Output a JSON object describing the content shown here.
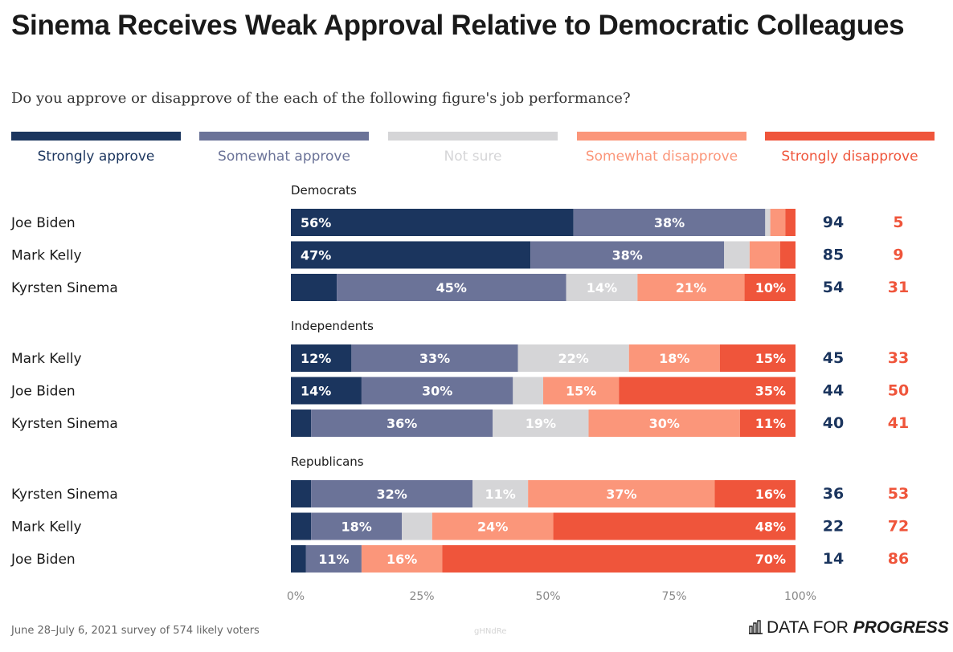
{
  "title": "Sinema Receives Weak Approval Relative to Democratic Colleagues",
  "subtitle": "Do you approve or disapprove of the each of the following figure's job performance?",
  "footer": "June 28–July 6, 2021 survey of 574 likely voters",
  "watermark": "gHNdRe",
  "brand": {
    "part1": "DATA FOR",
    "part2": "PROGRESS",
    "icon": "bar-chart-icon"
  },
  "legend": [
    {
      "label": "Strongly approve",
      "color": "#1b355e"
    },
    {
      "label": "Somewhat approve",
      "color": "#6b7398"
    },
    {
      "label": "Not sure",
      "color": "#d5d5d7"
    },
    {
      "label": "Somewhat disapprove",
      "color": "#fb967a"
    },
    {
      "label": "Strongly disapprove",
      "color": "#ef553b"
    }
  ],
  "chart_data": {
    "type": "bar",
    "orientation": "horizontal",
    "stacked": true,
    "xlim": [
      0,
      100
    ],
    "ticks": [
      "0%",
      "25%",
      "50%",
      "75%",
      "100%"
    ],
    "series": [
      "Strongly approve",
      "Somewhat approve",
      "Not sure",
      "Somewhat disapprove",
      "Strongly disapprove"
    ],
    "colors": [
      "#1b355e",
      "#6b7398",
      "#d5d5d7",
      "#fb967a",
      "#ef553b"
    ],
    "groups": [
      {
        "name": "Democrats",
        "rows": [
          {
            "label": "Joe Biden",
            "values": [
              56,
              38,
              1,
              3,
              2
            ],
            "shown": [
              "56%",
              "38%",
              "",
              "",
              ""
            ],
            "approve_total": "94",
            "disapprove_total": "5"
          },
          {
            "label": "Mark Kelly",
            "values": [
              47,
              38,
              5,
              6,
              3
            ],
            "shown": [
              "47%",
              "38%",
              "",
              "",
              ""
            ],
            "approve_total": "85",
            "disapprove_total": "9"
          },
          {
            "label": "Kyrsten Sinema",
            "values": [
              9,
              45,
              14,
              21,
              10
            ],
            "shown": [
              "",
              "45%",
              "14%",
              "21%",
              "10%"
            ],
            "approve_total": "54",
            "disapprove_total": "31"
          }
        ]
      },
      {
        "name": "Independents",
        "rows": [
          {
            "label": "Mark Kelly",
            "values": [
              12,
              33,
              22,
              18,
              15
            ],
            "shown": [
              "12%",
              "33%",
              "22%",
              "18%",
              "15%"
            ],
            "approve_total": "45",
            "disapprove_total": "33"
          },
          {
            "label": "Joe Biden",
            "values": [
              14,
              30,
              6,
              15,
              35
            ],
            "shown": [
              "14%",
              "30%",
              "",
              "15%",
              "35%"
            ],
            "approve_total": "44",
            "disapprove_total": "50"
          },
          {
            "label": "Kyrsten Sinema",
            "values": [
              4,
              36,
              19,
              30,
              11
            ],
            "shown": [
              "",
              "36%",
              "19%",
              "30%",
              "11%"
            ],
            "approve_total": "40",
            "disapprove_total": "41"
          }
        ]
      },
      {
        "name": "Republicans",
        "rows": [
          {
            "label": "Kyrsten Sinema",
            "values": [
              4,
              32,
              11,
              37,
              16
            ],
            "shown": [
              "",
              "32%",
              "11%",
              "37%",
              "16%"
            ],
            "approve_total": "36",
            "disapprove_total": "53"
          },
          {
            "label": "Mark Kelly",
            "values": [
              4,
              18,
              6,
              24,
              48
            ],
            "shown": [
              "",
              "18%",
              "",
              "24%",
              "48%"
            ],
            "approve_total": "22",
            "disapprove_total": "72"
          },
          {
            "label": "Joe Biden",
            "values": [
              3,
              11,
              0,
              16,
              70
            ],
            "shown": [
              "",
              "11%",
              "",
              "16%",
              "70%"
            ],
            "approve_total": "14",
            "disapprove_total": "86"
          }
        ]
      }
    ]
  }
}
